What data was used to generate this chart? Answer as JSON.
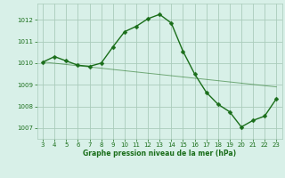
{
  "x": [
    3,
    4,
    5,
    6,
    7,
    8,
    9,
    10,
    11,
    12,
    13,
    14,
    15,
    16,
    17,
    18,
    19,
    20,
    21,
    22,
    23
  ],
  "y": [
    1010.05,
    1010.3,
    1010.1,
    1009.9,
    1009.85,
    1010.0,
    1010.75,
    1011.45,
    1011.7,
    1012.05,
    1012.25,
    1011.85,
    1010.55,
    1009.5,
    1008.65,
    1008.1,
    1007.75,
    1007.05,
    1007.35,
    1007.55,
    1008.35
  ],
  "line_color": "#1a6e1a",
  "marker": "D",
  "marker_size": 2.5,
  "bg_color": "#d8f0e8",
  "grid_color": "#aaccbb",
  "xlabel": "Graphe pression niveau de la mer (hPa)",
  "xlabel_color": "#1a6e1a",
  "tick_color": "#1a6e1a",
  "ylim": [
    1006.5,
    1012.75
  ],
  "xlim": [
    2.5,
    23.5
  ],
  "yticks": [
    1007,
    1008,
    1009,
    1010,
    1011,
    1012
  ],
  "xticks": [
    3,
    4,
    5,
    6,
    7,
    8,
    9,
    10,
    11,
    12,
    13,
    14,
    15,
    16,
    17,
    18,
    19,
    20,
    21,
    22,
    23
  ],
  "linewidth": 1.0,
  "trend_x": [
    3,
    23
  ],
  "trend_y": [
    1010.05,
    1008.9
  ]
}
